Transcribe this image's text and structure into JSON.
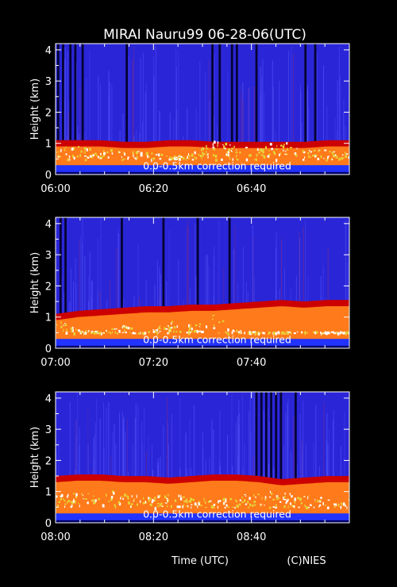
{
  "title": "MIRAI Nauru99 06-28-06(UTC)",
  "footer": {
    "xlabel": "Time (UTC)",
    "credit": "(C)NIES"
  },
  "colors": {
    "background": "#000000",
    "sky": "#2a26d8",
    "sky_noise": "#5a58ff",
    "dark_gap": "#000022",
    "boundary_red": "#cc0000",
    "haze_orange": "#ff7a1a",
    "cloud_yellow": "#e6d23a",
    "cloud_white": "#ffffff",
    "surface_band": "#0022ff"
  },
  "chart_data": [
    {
      "type": "heatmap",
      "instrument_title": "MIRAI Nauru99 06-28-06(UTC)",
      "ylabel": "Height (km)",
      "ylim": [
        0,
        4.2
      ],
      "y_ticks": [
        "0",
        "1",
        "2",
        "3",
        "4"
      ],
      "x_range_min": [
        0,
        60
      ],
      "x_ticks": [
        {
          "label": "06:00",
          "min": 0
        },
        {
          "label": "06:20",
          "min": 20
        },
        {
          "label": "06:40",
          "min": 40
        }
      ],
      "annotation": "0.0-0.5km correction required",
      "boundary_top_km": [
        1.05,
        1.05,
        1.05,
        1.0,
        1.0,
        1.05,
        1.05,
        1.0,
        1.0,
        1.0,
        1.0,
        1.0,
        1.05,
        1.05
      ],
      "cloud_top_km": [
        0.95,
        0.95,
        0.8,
        0.85,
        0.8,
        0.6,
        0.7,
        1.1,
        0.95,
        0.9,
        1.15,
        0.8,
        0.8,
        0.75
      ],
      "dark_gaps_min": [
        0.5,
        1.5,
        3,
        4,
        5.5,
        14.5,
        32,
        33.5,
        36,
        37,
        41,
        51,
        53
      ],
      "noise_boost": 0.0
    },
    {
      "type": "heatmap",
      "ylabel": "Height (km)",
      "ylim": [
        0,
        4.2
      ],
      "y_ticks": [
        "0",
        "1",
        "2",
        "3",
        "4"
      ],
      "x_range_min": [
        0,
        60
      ],
      "x_ticks": [
        {
          "label": "07:00",
          "min": 0
        },
        {
          "label": "07:20",
          "min": 20
        },
        {
          "label": "07:40",
          "min": 40
        }
      ],
      "annotation": "0.0-0.5km correction required",
      "boundary_top_km": [
        1.05,
        1.15,
        1.2,
        1.25,
        1.3,
        1.3,
        1.35,
        1.35,
        1.4,
        1.45,
        1.5,
        1.45,
        1.5,
        1.5
      ],
      "cloud_top_km": [
        0.95,
        0.6,
        0.55,
        0.75,
        0.5,
        0.9,
        0.8,
        1.1,
        0.6,
        0.55,
        0.5,
        0.5,
        0.5,
        0.5
      ],
      "dark_gaps_min": [
        1,
        2,
        13.5,
        22,
        29,
        35.5
      ],
      "noise_boost": 0.0
    },
    {
      "type": "heatmap",
      "ylabel": "Height (km)",
      "ylim": [
        0,
        4.2
      ],
      "y_ticks": [
        "0",
        "1",
        "2",
        "3",
        "4"
      ],
      "x_range_min": [
        0,
        60
      ],
      "x_ticks": [
        {
          "label": "08:00",
          "min": 0
        },
        {
          "label": "08:20",
          "min": 20
        },
        {
          "label": "08:40",
          "min": 40
        }
      ],
      "annotation": "0.0-0.5km correction required",
      "boundary_top_km": [
        1.45,
        1.5,
        1.5,
        1.45,
        1.45,
        1.4,
        1.45,
        1.5,
        1.5,
        1.45,
        1.35,
        1.4,
        1.45,
        1.45
      ],
      "cloud_top_km": [
        0.9,
        1.0,
        1.0,
        1.1,
        0.85,
        1.0,
        0.8,
        0.8,
        0.85,
        1.05,
        1.05,
        0.9,
        0.8,
        0.85
      ],
      "dark_gaps_min": [
        41,
        42,
        43,
        44,
        45,
        46,
        49
      ],
      "noise_boost": 0.3
    }
  ]
}
